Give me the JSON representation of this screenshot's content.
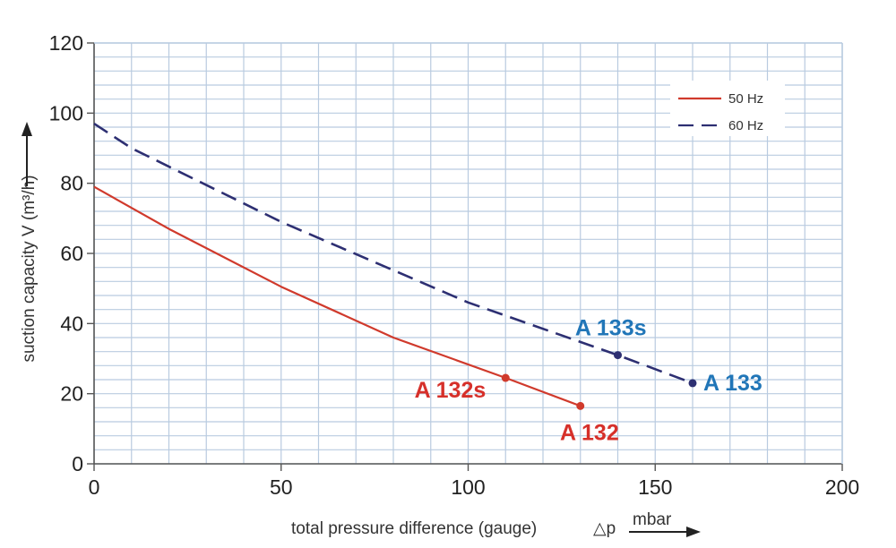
{
  "chart_data": {
    "type": "line",
    "xlabel": "total pressure difference (gauge)",
    "xlabel_symbol": "△p",
    "xunit": "mbar",
    "ylabel": "suction capacity V (m³/h)",
    "xlim": [
      0,
      200
    ],
    "ylim": [
      0,
      120
    ],
    "x_ticks": [
      0,
      50,
      100,
      150,
      200
    ],
    "y_ticks": [
      0,
      20,
      40,
      60,
      80,
      100,
      120
    ],
    "x_minor_step": 10,
    "y_minor_step": 4,
    "grid": true,
    "legend_position": "top-right",
    "series": [
      {
        "name": "50 Hz",
        "color": "#d03a2c",
        "style": "solid",
        "points": [
          [
            0,
            79
          ],
          [
            20,
            67
          ],
          [
            50,
            50.5
          ],
          [
            80,
            36
          ],
          [
            110,
            24.5
          ],
          [
            130,
            16.5
          ]
        ],
        "markers": [
          {
            "x": 110,
            "y": 24.5,
            "label": "A 132s"
          },
          {
            "x": 130,
            "y": 16.5,
            "label": "A 132"
          }
        ]
      },
      {
        "name": "60 Hz",
        "color": "#2d2f72",
        "style": "dashed",
        "points": [
          [
            0,
            97
          ],
          [
            10,
            90
          ],
          [
            50,
            69
          ],
          [
            100,
            46
          ],
          [
            140,
            31
          ],
          [
            160,
            23
          ]
        ],
        "markers": [
          {
            "x": 140,
            "y": 31,
            "label": "A 133s"
          },
          {
            "x": 160,
            "y": 23,
            "label": "A 133"
          }
        ]
      }
    ],
    "label_colors": {
      "50 Hz": "#d6302a",
      "60 Hz": "#2176b8"
    },
    "grid_color": "#b9cbe0",
    "axis_color": "#555555"
  }
}
